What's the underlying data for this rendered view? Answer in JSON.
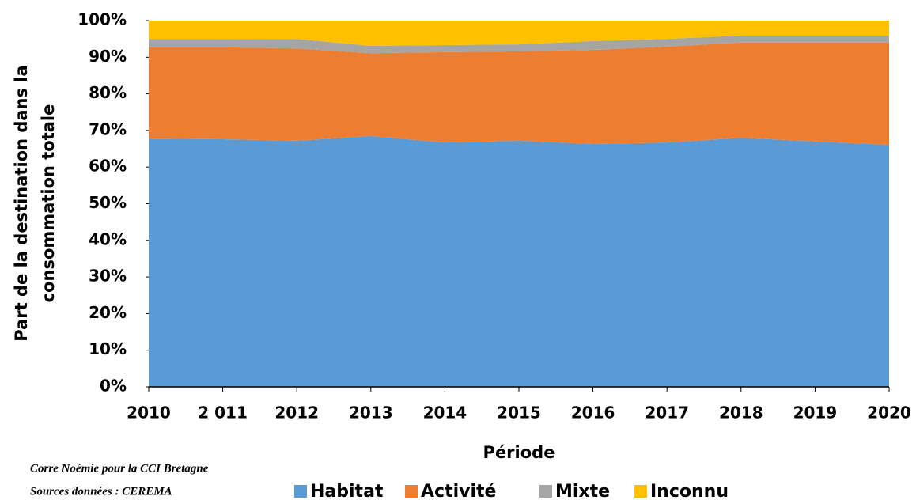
{
  "chart_data": {
    "type": "stacked_area",
    "ylabel": [
      "Part de la destination dans la",
      "consommation totale"
    ],
    "xlabel": "Période",
    "notes": [
      "Corre Noémie pour la CCI Bretagne",
      "Sources données : CEREMA"
    ],
    "categories": [
      "2010",
      "2 011",
      "2012",
      "2013",
      "2014",
      "2015",
      "2016",
      "2017",
      "2018",
      "2019",
      "2020"
    ],
    "series": [
      {
        "name": "Habitat",
        "color": "#5b9bd5",
        "values": [
          67.8,
          67.6,
          67.2,
          68.5,
          66.7,
          67.2,
          66.3,
          66.7,
          68.0,
          67.0,
          66.1
        ]
      },
      {
        "name": "Activité",
        "color": "#ed7d31",
        "values": [
          24.9,
          25.1,
          25.2,
          22.6,
          24.7,
          24.4,
          25.7,
          26.2,
          26.0,
          27.0,
          27.9
        ]
      },
      {
        "name": "Mixte",
        "color": "#a5a5a5",
        "values": [
          2.3,
          2.3,
          2.6,
          2.0,
          1.9,
          1.9,
          2.4,
          2.1,
          1.9,
          1.9,
          1.9
        ]
      },
      {
        "name": "Inconnu",
        "color": "#ffc000",
        "values": [
          5.0,
          5.0,
          5.0,
          6.9,
          6.7,
          6.5,
          5.6,
          5.0,
          4.1,
          4.1,
          4.1
        ]
      }
    ],
    "ylim": [
      0,
      100
    ],
    "yticks": [
      {
        "value": 0,
        "label": "0%"
      },
      {
        "value": 10,
        "label": "10%"
      },
      {
        "value": 20,
        "label": "20%"
      },
      {
        "value": 30,
        "label": "30%"
      },
      {
        "value": 40,
        "label": "40%"
      },
      {
        "value": 50,
        "label": "50%"
      },
      {
        "value": 60,
        "label": "60%"
      },
      {
        "value": 70,
        "label": "70%"
      },
      {
        "value": 80,
        "label": "80%"
      },
      {
        "value": 90,
        "label": "90%"
      },
      {
        "value": 100,
        "label": "100%"
      }
    ],
    "legend": "bottom"
  }
}
